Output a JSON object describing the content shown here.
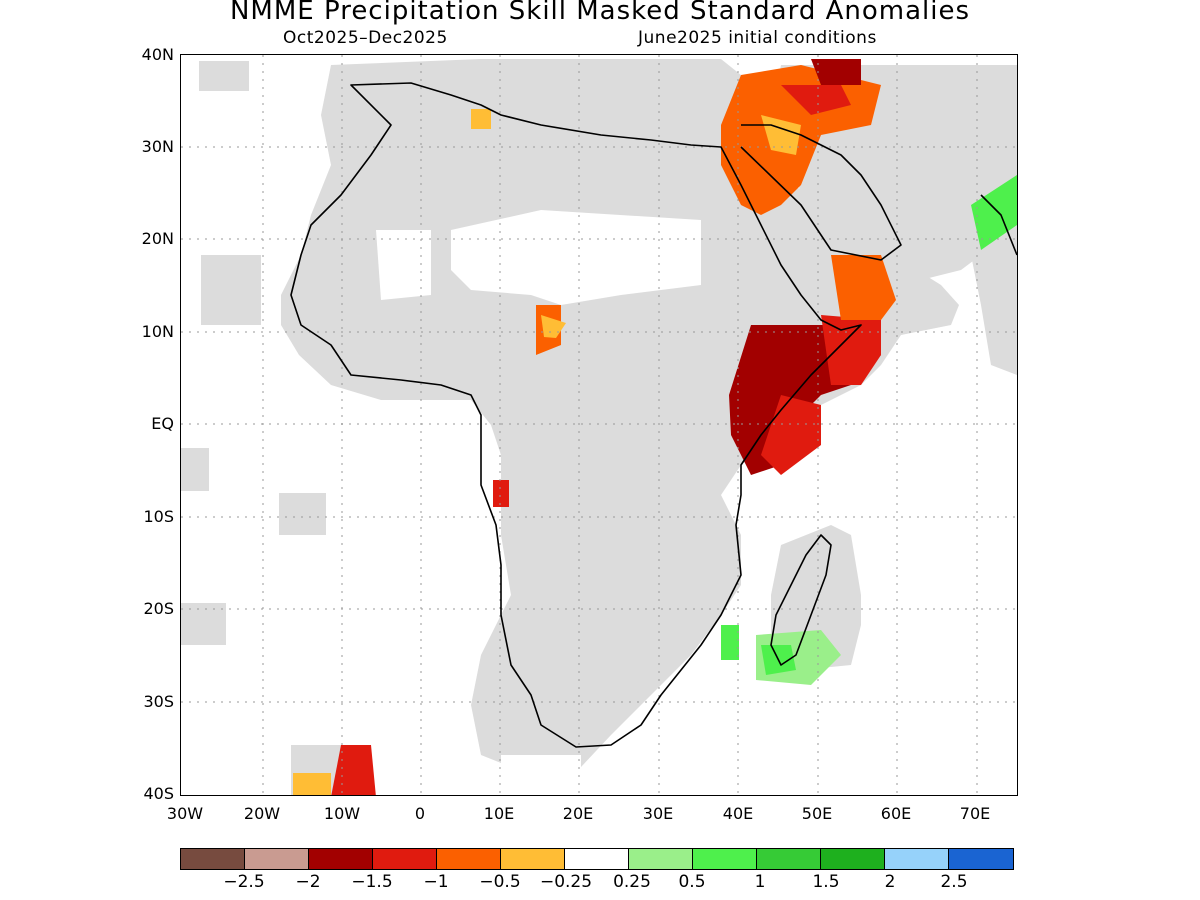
{
  "title": "NMME Precipitation Skill Masked Standard Anomalies",
  "subtitle_left": "Oct2025–Dec2025",
  "subtitle_right": "June2025 initial conditions",
  "y_ticks": [
    "40N",
    "30N",
    "20N",
    "10N",
    "EQ",
    "10S",
    "20S",
    "30S",
    "40S"
  ],
  "x_ticks": [
    "30W",
    "20W",
    "10W",
    "0",
    "10E",
    "20E",
    "30E",
    "40E",
    "50E",
    "60E",
    "70E"
  ],
  "colorbar": {
    "colors": [
      "#774b3f",
      "#c99b91",
      "#a20000",
      "#e01b0f",
      "#fb6000",
      "#ffbd35",
      "#ffffff",
      "#9aef8a",
      "#4ef04c",
      "#36cb36",
      "#1eb01e",
      "#96d2fa",
      "#1a64d2"
    ],
    "labels": [
      "−2.5",
      "−2",
      "−1.5",
      "−1",
      "−0.5",
      "−0.25",
      "0.25",
      "0.5",
      "1",
      "1.5",
      "2",
      "2.5"
    ]
  },
  "map_colors": {
    "land_no_skill": "#dcdcdc",
    "ocean": "#ffffff",
    "coastline": "#000000",
    "grid": "#888888"
  }
}
